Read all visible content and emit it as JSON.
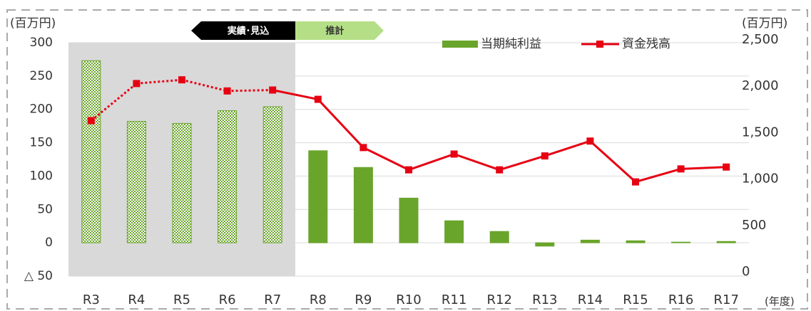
{
  "chart_data": {
    "type": "bar_line",
    "y_unit": "(百万円)",
    "y2_unit": "(百万円)",
    "x_unit": "(年度)",
    "categories": [
      "R3",
      "R4",
      "R5",
      "R6",
      "R7",
      "R8",
      "R9",
      "R10",
      "R11",
      "R12",
      "R13",
      "R14",
      "R15",
      "R16",
      "R17"
    ],
    "periods": [
      {
        "label": "実績･見込",
        "categories": [
          "R3",
          "R4",
          "R5",
          "R6",
          "R7"
        ]
      },
      {
        "label": "推計",
        "categories": [
          "R8",
          "R9",
          "R10",
          "R11",
          "R12",
          "R13",
          "R14",
          "R15",
          "R16",
          "R17"
        ]
      }
    ],
    "series": [
      {
        "name": "当期純利益",
        "type": "bar",
        "color": "#6aa52b",
        "values": [
          273,
          182,
          179,
          198,
          204,
          138,
          113,
          67,
          33,
          17,
          -5,
          4,
          3,
          1,
          2
        ]
      },
      {
        "name": "資金残高",
        "type": "line",
        "axis": "y2",
        "color": "#e60012",
        "values": [
          1660,
          2060,
          2100,
          1980,
          1990,
          1890,
          1370,
          1130,
          1300,
          1130,
          1280,
          1440,
          1000,
          1140,
          1160
        ]
      }
    ],
    "ylim": [
      -50,
      300
    ],
    "yticks": [
      {
        "value": -50,
        "label": "△ 50"
      },
      0,
      50,
      100,
      150,
      200,
      250,
      300
    ],
    "y2lim": [
      0,
      2500
    ],
    "y2ticks": [
      0,
      500,
      {
        "value": 1000,
        "label": "1,000"
      },
      {
        "value": 1500,
        "label": "1,500"
      },
      {
        "value": 2000,
        "label": "2,000"
      },
      {
        "value": 2500,
        "label": "2,500"
      }
    ],
    "grid": true
  }
}
